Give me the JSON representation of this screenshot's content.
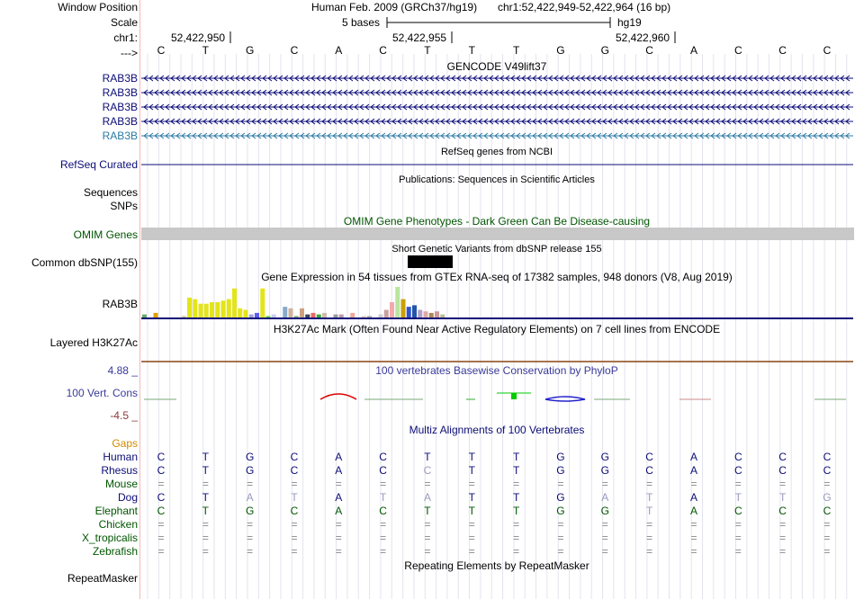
{
  "header": {
    "window_position_label": "Window Position",
    "scale_label": "Scale",
    "chr_label": "chr1:",
    "strand_label": "--->",
    "assembly_text": "Human Feb. 2009 (GRCh37/hg19)",
    "position_text": "chr1:52,422,949-52,422,964 (16 bp)",
    "scale_text": "5 bases",
    "scale_db": "hg19",
    "coords": [
      "52,422,950",
      "52,422,955",
      "52,422,960"
    ]
  },
  "sequence": [
    "C",
    "T",
    "G",
    "C",
    "A",
    "C",
    "T",
    "T",
    "T",
    "G",
    "G",
    "C",
    "A",
    "C",
    "C",
    "C"
  ],
  "tracks": {
    "gencode": {
      "title": "GENCODE V49lift37",
      "labels": [
        "RAB3B",
        "RAB3B",
        "RAB3B",
        "RAB3B",
        "RAB3B"
      ],
      "label_colors": [
        "#0c0c78",
        "#0c0c78",
        "#0c0c78",
        "#0c0c78",
        "#2c7ba6"
      ]
    },
    "refseq": {
      "title": "RefSeq genes from NCBI",
      "label": "RefSeq Curated",
      "color": "#0c0c78"
    },
    "publications": {
      "title": "Publications: Sequences in Scientific Articles",
      "labels": [
        "Sequences",
        "SNPs"
      ]
    },
    "omim": {
      "title": "OMIM Gene Phenotypes - Dark Green Can Be Disease-causing",
      "label": "OMIM Genes",
      "color": "#005500"
    },
    "dbsnp": {
      "title": "Short Genetic Variants from dbSNP release 155",
      "label": "Common dbSNP(155)"
    },
    "gtex": {
      "title": "Gene Expression in 54 tissues from GTEx RNA-seq of 17382 samples, 948 donors (V8, Aug 2019)",
      "label": "RAB3B"
    },
    "h3k27ac": {
      "title": "H3K27Ac Mark (Often Found Near Active Regulatory Elements) on 7 cell lines from ENCODE",
      "label": "Layered H3K27Ac"
    },
    "conservation": {
      "title": "100 vertebrates Basewise Conservation by PhyloP",
      "label": "100 Vert. Cons",
      "max_label": "4.88 _",
      "min_label": "-4.5 _",
      "title_color": "#3a3a9a"
    },
    "multiz": {
      "title": "Multiz Alignments of 100 Vertebrates",
      "title_color": "#0c0c78",
      "species": [
        {
          "name": "Gaps",
          "color": "#d08a00",
          "bases": []
        },
        {
          "name": "Human",
          "color": "#0c0c78",
          "bases": [
            "C",
            "T",
            "G",
            "C",
            "A",
            "C",
            "T",
            "T",
            "T",
            "G",
            "G",
            "C",
            "A",
            "C",
            "C",
            "C"
          ]
        },
        {
          "name": "Rhesus",
          "color": "#0c0c78",
          "bases": [
            "C",
            "T",
            "G",
            "C",
            "A",
            "C",
            "C",
            "T",
            "T",
            "G",
            "G",
            "C",
            "A",
            "C",
            "C",
            "C"
          ]
        },
        {
          "name": "Mouse",
          "color": "#005500",
          "bases": [
            "=",
            "=",
            "=",
            "=",
            "=",
            "=",
            "=",
            "=",
            "=",
            "=",
            "=",
            "=",
            "=",
            "=",
            "=",
            "="
          ]
        },
        {
          "name": "Dog",
          "color": "#0c0c78",
          "bases": [
            "C",
            "T",
            "A",
            "T",
            "A",
            "T",
            "A",
            "T",
            "T",
            "G",
            "A",
            "T",
            "A",
            "T",
            "T",
            "G"
          ]
        },
        {
          "name": "Elephant",
          "color": "#005500",
          "bases": [
            "C",
            "T",
            "G",
            "C",
            "A",
            "C",
            "T",
            "T",
            "T",
            "G",
            "G",
            "T",
            "A",
            "C",
            "C",
            "C"
          ]
        },
        {
          "name": "Chicken",
          "color": "#005500",
          "bases": [
            "=",
            "=",
            "=",
            "=",
            "=",
            "=",
            "=",
            "=",
            "=",
            "=",
            "=",
            "=",
            "=",
            "=",
            "=",
            "="
          ]
        },
        {
          "name": "X_tropicalis",
          "color": "#005500",
          "bases": [
            "=",
            "=",
            "=",
            "=",
            "=",
            "=",
            "=",
            "=",
            "=",
            "=",
            "=",
            "=",
            "=",
            "=",
            "=",
            "="
          ]
        },
        {
          "name": "Zebrafish",
          "color": "#005500",
          "bases": [
            "=",
            "=",
            "=",
            "=",
            "=",
            "=",
            "=",
            "=",
            "=",
            "=",
            "=",
            "=",
            "=",
            "=",
            "=",
            "="
          ]
        }
      ]
    },
    "repeatmasker": {
      "title": "Repeating Elements by RepeatMasker",
      "label": "RepeatMasker"
    }
  },
  "gtex_bars": {
    "values": [
      0.1,
      0,
      0.15,
      0,
      0,
      0,
      0,
      0.05,
      0.65,
      0.6,
      0.45,
      0.45,
      0.5,
      0.5,
      0.55,
      0.6,
      0.95,
      0.3,
      0.25,
      0.1,
      0.15,
      0.95,
      0.05,
      0.1,
      0,
      0.35,
      0.3,
      0.05,
      0.3,
      0.1,
      0.15,
      0.1,
      0.15,
      0,
      0.1,
      0.1,
      0,
      0.15,
      0,
      0.05,
      0.05,
      0,
      0.1,
      0.25,
      0.5,
      1.0,
      0.6,
      0.35,
      0.4,
      0.25,
      0.2,
      0.15,
      0.2,
      0.1
    ],
    "colors": [
      "#6aa86a",
      "#dfa000",
      "#dfa000",
      "#b33",
      "#8a3",
      "#883388",
      "#c9c",
      "#cc9",
      "#e4e41a",
      "#e4e41a",
      "#e4e41a",
      "#e4e41a",
      "#e4e41a",
      "#e4e41a",
      "#e4e41a",
      "#e4e41a",
      "#e4e41a",
      "#e4e41a",
      "#e4e41a",
      "#a0a0dd",
      "#5c5cf0",
      "#e4e41a",
      "#66cc44",
      "#ccccee",
      "#aaa",
      "#8ac",
      "#cfb29e",
      "#8a7",
      "#cfa07f",
      "#345",
      "#e66",
      "#3a3",
      "#cba",
      "#aaa",
      "#999",
      "#b9a",
      "#ccc",
      "#ea9",
      "#777",
      "#dcb",
      "#aaa",
      "#a88",
      "#ccc",
      "#c9a0a0",
      "#f4aaaa",
      "#b8e6a0",
      "#c9a000",
      "#3355cc",
      "#2255aa",
      "#b3a0c8",
      "#daa",
      "#a85",
      "#c99",
      "#bb9"
    ]
  }
}
